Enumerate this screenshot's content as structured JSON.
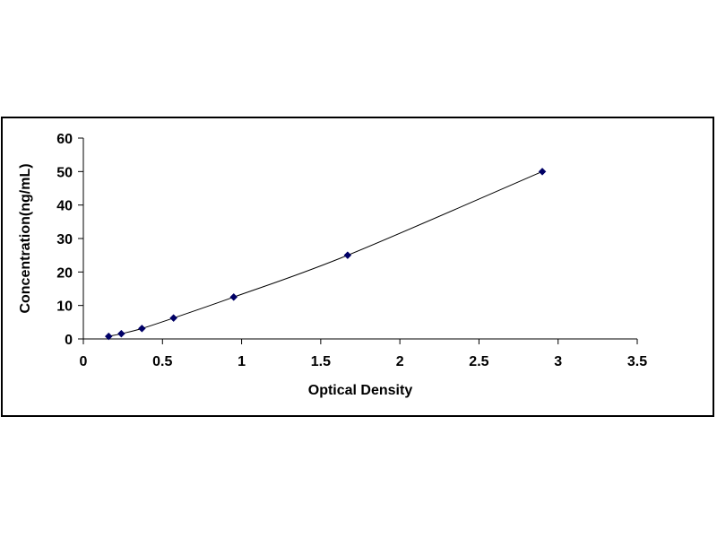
{
  "chart_data": {
    "type": "scatter",
    "title": "",
    "xlabel": "Optical Density",
    "ylabel": "Concentration(ng/mL)",
    "xlim": [
      0,
      3.5
    ],
    "ylim": [
      0,
      60
    ],
    "x_ticks": [
      0,
      0.5,
      1,
      1.5,
      2,
      2.5,
      3,
      3.5
    ],
    "x_tick_labels": [
      "0",
      "0.5",
      "1",
      "1.5",
      "2",
      "2.5",
      "3",
      "3.5"
    ],
    "y_ticks": [
      0,
      10,
      20,
      30,
      40,
      50,
      60
    ],
    "y_tick_labels": [
      "0",
      "10",
      "20",
      "30",
      "40",
      "50",
      "60"
    ],
    "grid": false,
    "legend": "none",
    "series": [
      {
        "marker": "diamond",
        "color": "#000066",
        "trendline": "smooth",
        "x": [
          0.16,
          0.24,
          0.37,
          0.57,
          0.95,
          1.67,
          2.9
        ],
        "y": [
          0.78,
          1.56,
          3.12,
          6.25,
          12.5,
          25,
          50
        ]
      }
    ]
  }
}
